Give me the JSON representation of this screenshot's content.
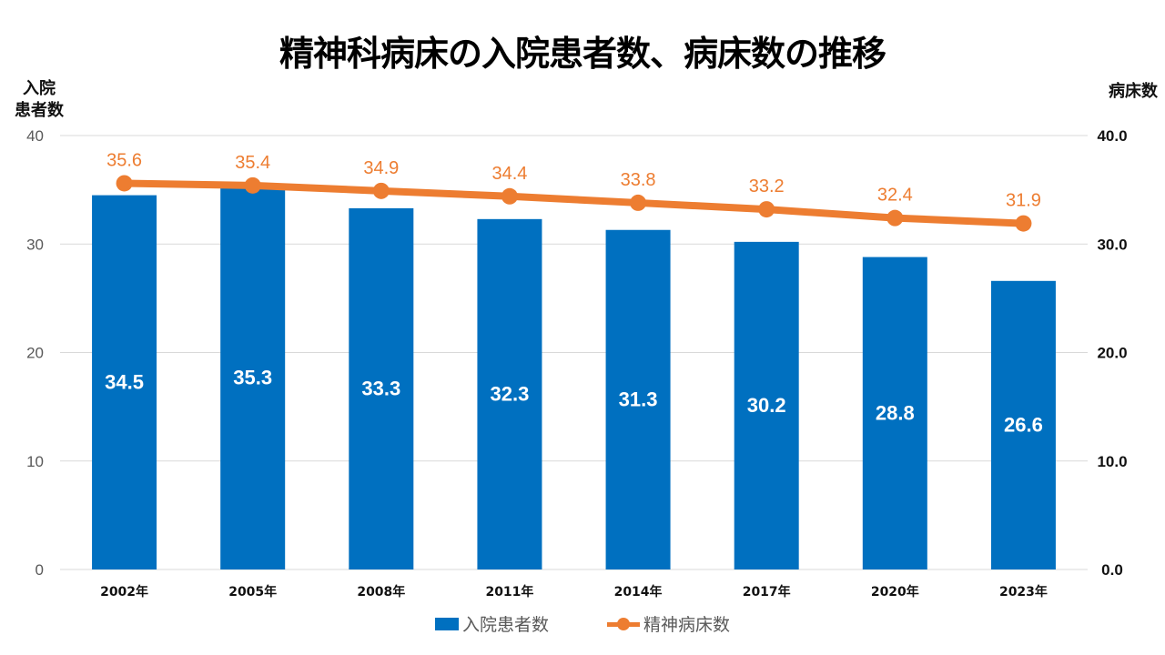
{
  "chart_data": {
    "type": "bar",
    "title": "精神科病床の入院患者数、病床数の推移",
    "categories": [
      "2002年",
      "2005年",
      "2008年",
      "2011年",
      "2014年",
      "2017年",
      "2020年",
      "2023年"
    ],
    "series": [
      {
        "name": "入院患者数",
        "type": "bar",
        "axis": "left",
        "color": "#0070C0",
        "values": [
          34.5,
          35.3,
          33.3,
          32.3,
          31.3,
          30.2,
          28.8,
          26.6
        ],
        "labels": [
          "34.5",
          "35.3",
          "33.3",
          "32.3",
          "31.3",
          "30.2",
          "28.8",
          "26.6"
        ]
      },
      {
        "name": "精神病床数",
        "type": "line",
        "axis": "right",
        "color": "#ED7D31",
        "values": [
          35.6,
          35.4,
          34.9,
          34.4,
          33.8,
          33.2,
          32.4,
          31.9
        ],
        "labels": [
          "35.6",
          "35.4",
          "34.9",
          "34.4",
          "33.8",
          "33.2",
          "32.4",
          "31.9"
        ]
      }
    ],
    "y_left": {
      "label_line1": "入院",
      "label_line2": "患者数",
      "ylim": [
        0,
        40
      ],
      "ticks": [
        "0",
        "10",
        "20",
        "30",
        "40"
      ]
    },
    "y_right": {
      "label": "病床数",
      "ylim": [
        0,
        40
      ],
      "ticks": [
        "0.0",
        "10.0",
        "20.0",
        "30.0",
        "40.0"
      ]
    },
    "grid": true,
    "legend": {
      "placement": "bottom",
      "entries": [
        "入院患者数",
        "精神病床数"
      ]
    }
  }
}
